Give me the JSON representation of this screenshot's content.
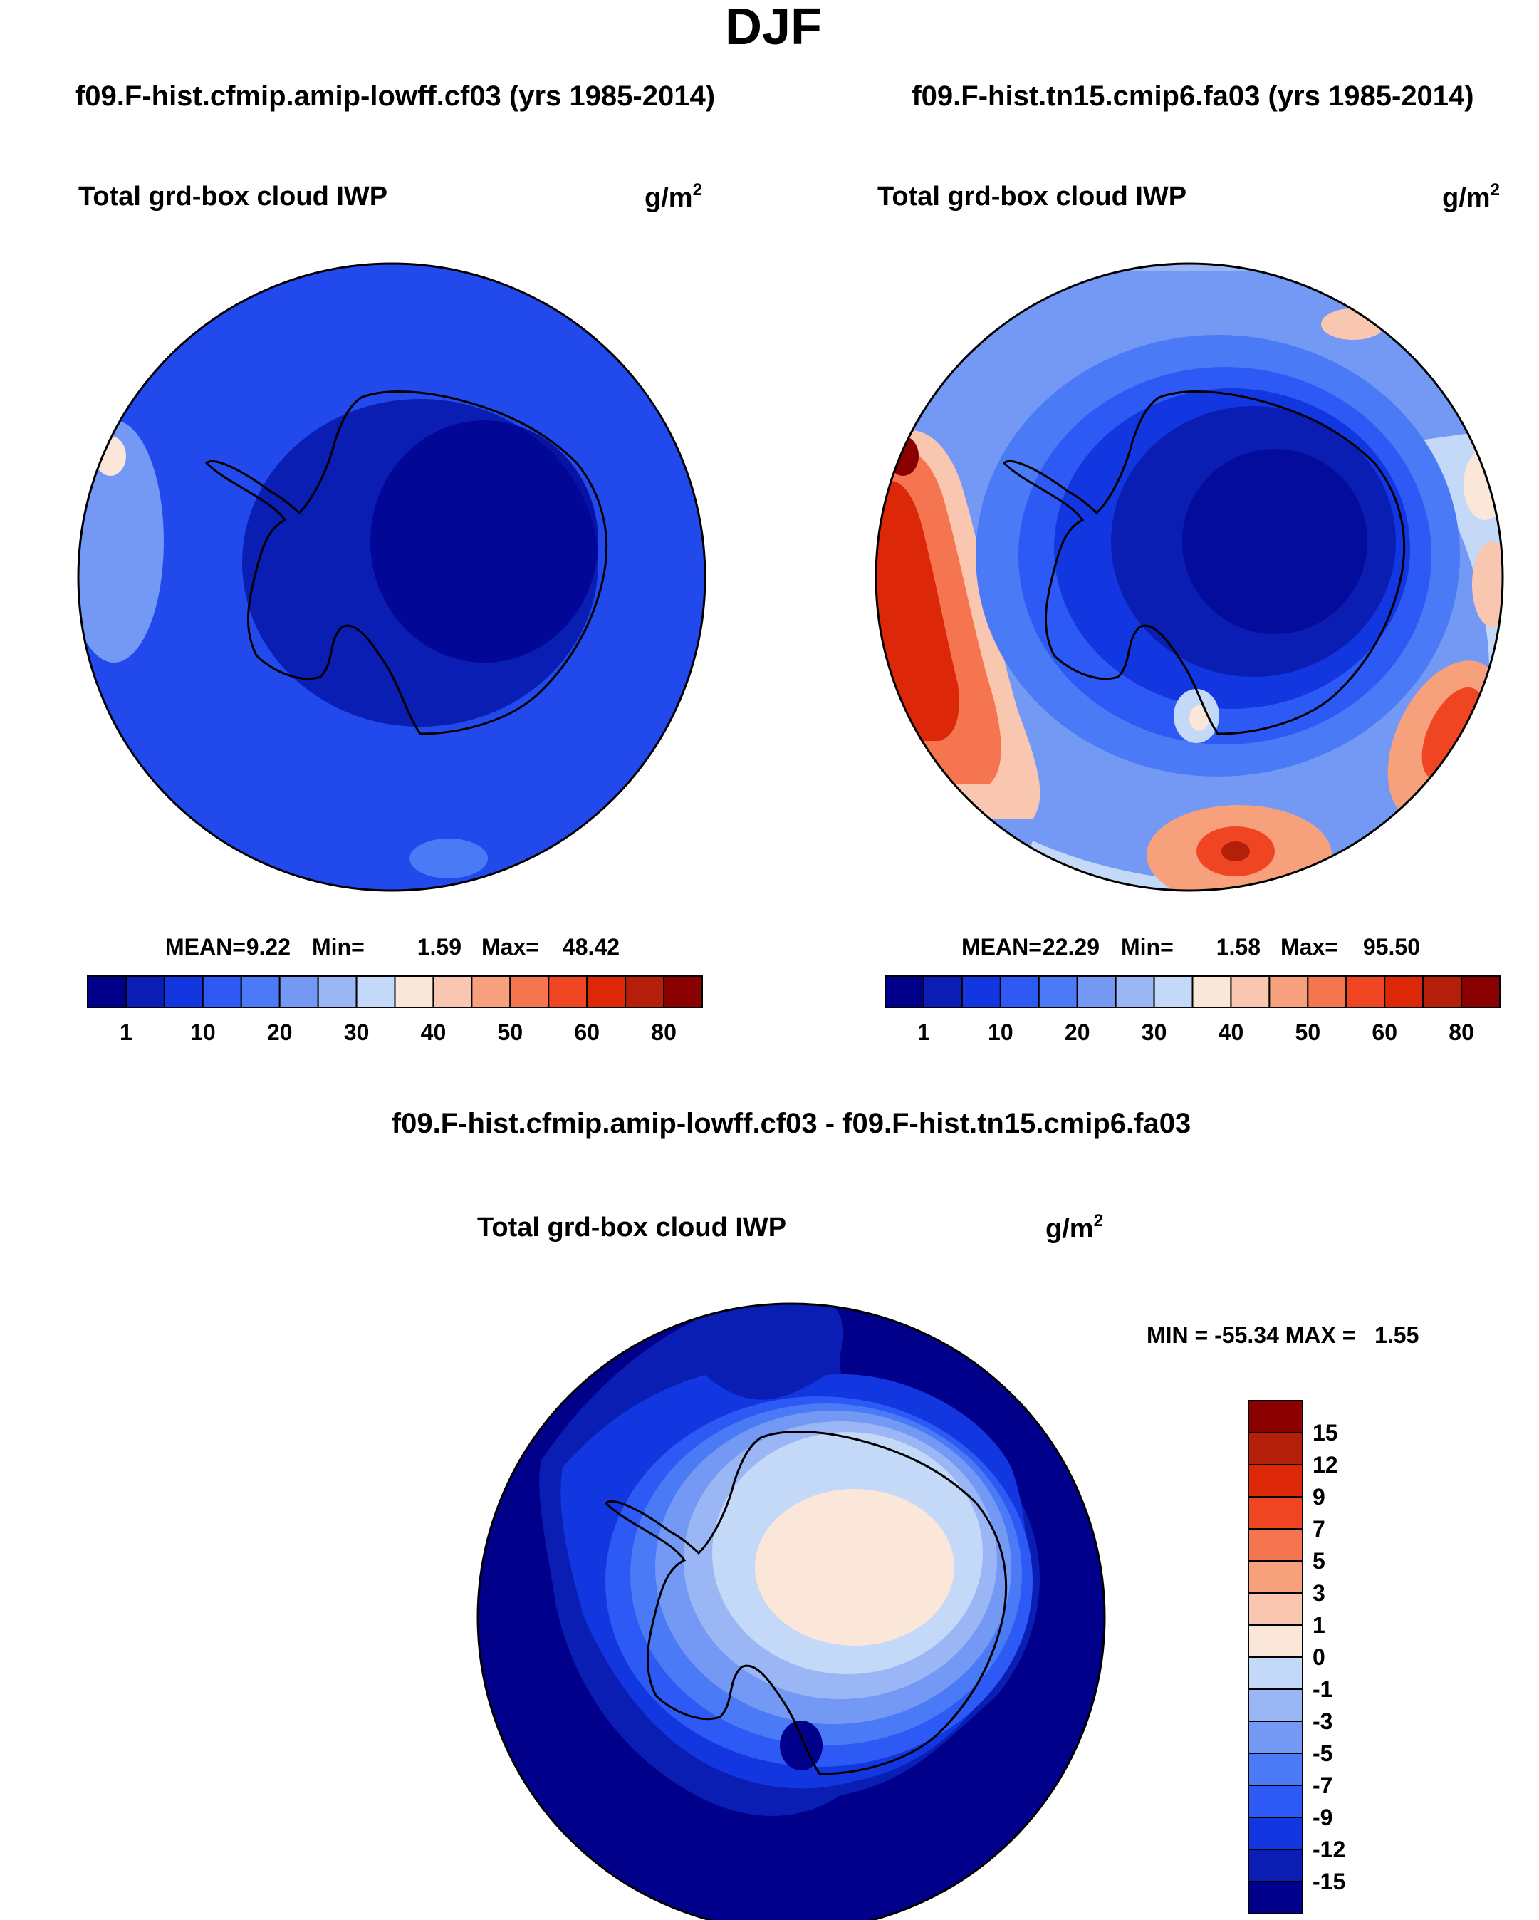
{
  "title": "DJF",
  "panels": [
    {
      "case_title": "f09.F-hist.cfmip.amip-lowff.cf03 (yrs 1985-2014)",
      "variable": "Total grd-box cloud IWP",
      "units": "g/m",
      "units_sup": "2",
      "stats": {
        "mean": "9.22",
        "min": "1.59",
        "max": "48.42"
      },
      "colorbar_labels": [
        "1",
        "10",
        "20",
        "30",
        "40",
        "50",
        "60",
        "80"
      ]
    },
    {
      "case_title": "f09.F-hist.tn15.cmip6.fa03 (yrs 1985-2014)",
      "variable": "Total grd-box cloud IWP",
      "units": "g/m",
      "units_sup": "2",
      "stats": {
        "mean": "22.29",
        "min": "1.58",
        "max": "95.50"
      },
      "colorbar_labels": [
        "1",
        "10",
        "20",
        "30",
        "40",
        "50",
        "60",
        "80"
      ]
    }
  ],
  "diff_panel": {
    "case_title": "f09.F-hist.cfmip.amip-lowff.cf03 - f09.F-hist.tn15.cmip6.fa03",
    "variable": "Total grd-box cloud IWP",
    "units": "g/m",
    "units_sup": "2",
    "minmax_text": "MIN = -55.34 MAX =   1.55",
    "colorbar_labels": [
      "15",
      "12",
      "9",
      "7",
      "5",
      "3",
      "1",
      "0",
      "-1",
      "-3",
      "-5",
      "-7",
      "-9",
      "-12",
      "-15"
    ]
  },
  "stat_labels": {
    "mean": "MEAN=",
    "min": "Min=",
    "max": "Max="
  },
  "colors": {
    "scale": [
      "#00008b",
      "#0a1eb4",
      "#1237e0",
      "#2d5af5",
      "#4a7af5",
      "#7399f5",
      "#9bb6f5",
      "#c4d8f7",
      "#fbe6da",
      "#f9c7b0",
      "#f6a07c",
      "#f57550",
      "#f04522",
      "#dc2808",
      "#b41f0a",
      "#8b0000"
    ],
    "outline": "#000000"
  }
}
